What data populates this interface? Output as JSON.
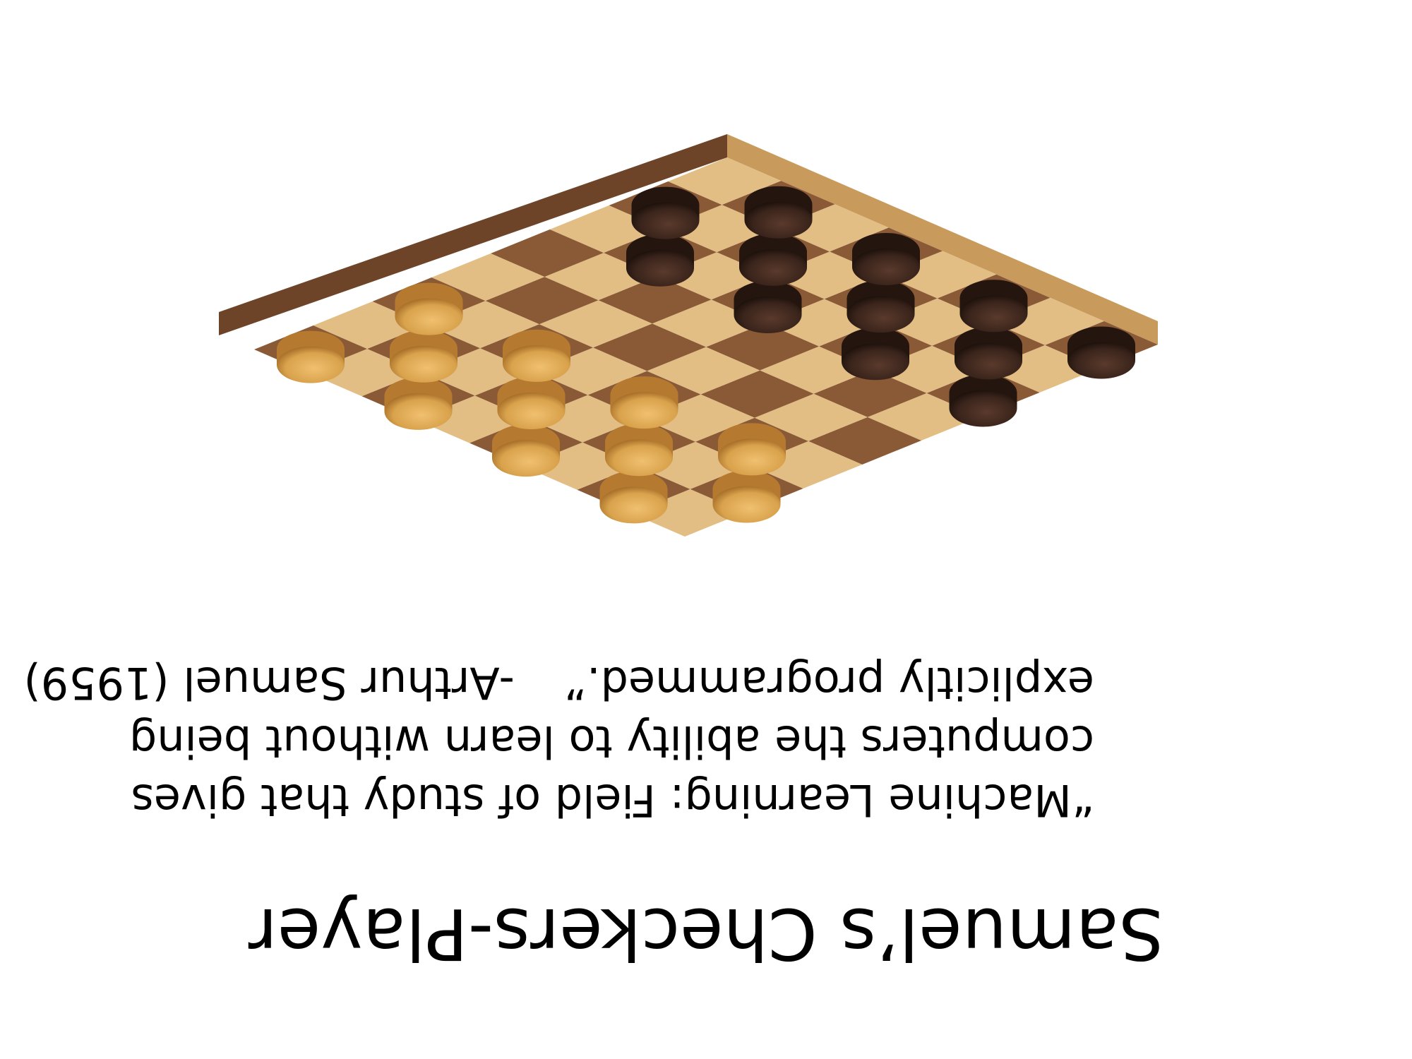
{
  "slide": {
    "orientation": "rotated 180 degrees",
    "title": "Samuel’s Checkers-Player",
    "quote": {
      "line1": "“Machine Learning: Field of study that gives",
      "line2": "computers the ability to learn without being",
      "line3_text": "explicitly programmed.”",
      "attribution": "-Arthur Samuel (1959)"
    }
  },
  "image": {
    "subject": "wooden checkerboard with dark and light checker pieces",
    "colors": {
      "light_square": "#e2be84",
      "dark_square": "#8a5a37",
      "board_edge_light": "#c89a5c",
      "board_edge_dark": "#6d4428",
      "dark_piece": "#3a241b",
      "light_piece": "#d9a24c"
    },
    "dark_pieces": 12,
    "light_pieces": 12
  }
}
